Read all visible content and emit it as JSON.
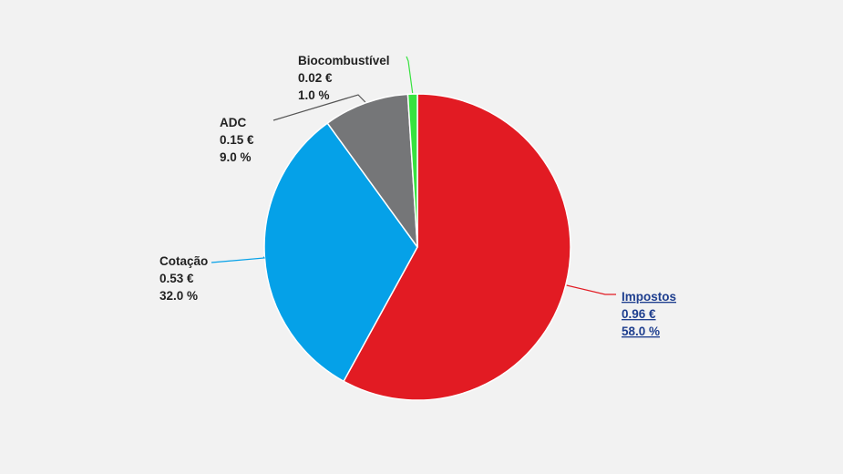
{
  "colors": {
    "background": "#f2f2f2",
    "label_text": "#222222",
    "link_text": "#1f3f8f",
    "slice_border": "#ffffff"
  },
  "chart_data": {
    "type": "pie",
    "title": "",
    "start_angle_deg": 0,
    "direction": "clockwise",
    "slices": [
      {
        "name": "Impostos",
        "value_label": "0.96 €",
        "percent_label": "58.0 %",
        "value": 0.96,
        "percent": 58.0,
        "color": "#e21b23",
        "is_link": true
      },
      {
        "name": "Cotação",
        "value_label": "0.53 €",
        "percent_label": "32.0 %",
        "value": 0.53,
        "percent": 32.0,
        "color": "#05a1e8",
        "is_link": false
      },
      {
        "name": "ADC",
        "value_label": "0.15 €",
        "percent_label": "9.0 %",
        "value": 0.15,
        "percent": 9.0,
        "color": "#757678",
        "is_link": false
      },
      {
        "name": "Biocombustível",
        "value_label": "0.02 €",
        "percent_label": "1.0 %",
        "value": 0.02,
        "percent": 1.0,
        "color": "#37e23f",
        "is_link": false
      }
    ]
  }
}
